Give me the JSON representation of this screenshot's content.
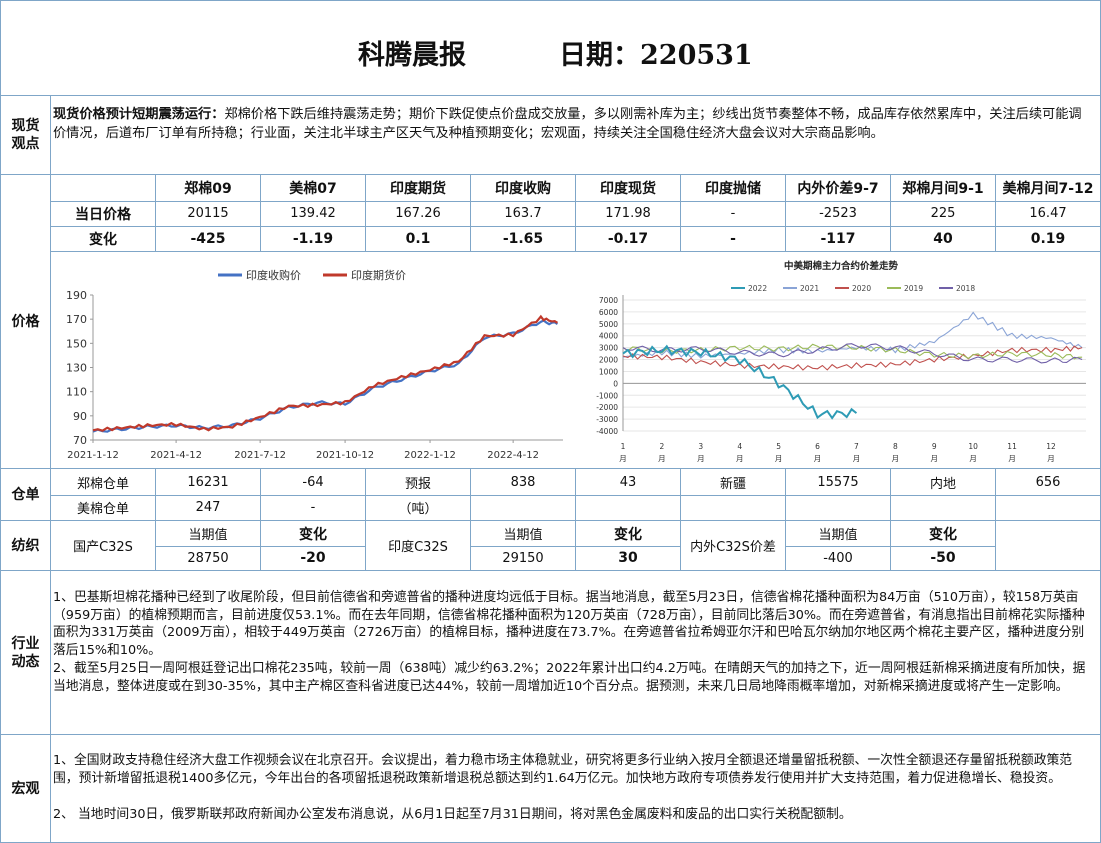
{
  "header": {
    "title": "科腾晨报",
    "date": "日期：220531"
  },
  "spot": {
    "label": "现货\n观点",
    "lead": "现货价格预计短期震荡运行：",
    "text": "郑棉价格下跌后维持震荡走势；期价下跌促使点价盘成交放量，多以刚需补库为主；纱线出货节奏整体不畅，成品库存依然累库中，关注后续可能调价情况，后道布厂订单有所持稳；行业面，关注北半球主产区天气及种植预期变化；宏观面，持续关注全国稳住经济大盘会议对大宗商品影响。"
  },
  "prices": {
    "label": "价格",
    "headers": [
      "郑棉09",
      "美棉07",
      "印度期货",
      "印度收购",
      "印度现货",
      "印度抛储",
      "内外价差9-7",
      "郑棉月间9-1",
      "美棉月间7-12"
    ],
    "row1_label": "当日价格",
    "row1": [
      "20115",
      "139.42",
      "167.26",
      "163.7",
      "171.98",
      "-",
      "-2523",
      "225",
      "16.47"
    ],
    "row2_label": "变化",
    "row2": [
      "-425",
      "-1.19",
      "0.1",
      "-1.65",
      "-0.17",
      "-",
      "-117",
      "40",
      "0.19"
    ]
  },
  "chart_data": [
    {
      "type": "line",
      "title": "",
      "legend": [
        "印度收购价",
        "印度期货价"
      ],
      "colors": {
        "印度收购价": "#4472c4",
        "印度期货价": "#c0392b"
      },
      "ylim": [
        70,
        190
      ],
      "yticks": [
        70,
        90,
        110,
        130,
        150,
        170,
        190
      ],
      "xticks": [
        "2021-1-12",
        "2021-4-12",
        "2021-7-12",
        "2021-10-12",
        "2022-1-12",
        "2022-4-12"
      ],
      "x": [
        "2021-1-12",
        "2021-2-12",
        "2021-3-12",
        "2021-4-12",
        "2021-5-12",
        "2021-6-12",
        "2021-7-12",
        "2021-8-12",
        "2021-9-12",
        "2021-10-12",
        "2021-11-12",
        "2021-12-12",
        "2022-1-12",
        "2022-2-12",
        "2022-3-12",
        "2022-4-12",
        "2022-5-12",
        "2022-5-30"
      ],
      "series": [
        {
          "name": "印度收购价",
          "values": [
            77,
            79,
            81,
            82,
            80,
            82,
            88,
            97,
            101,
            100,
            113,
            120,
            127,
            133,
            155,
            158,
            168,
            166
          ]
        },
        {
          "name": "印度期货价",
          "values": [
            78,
            80,
            82,
            83,
            79,
            81,
            89,
            98,
            99,
            101,
            115,
            122,
            128,
            135,
            156,
            157,
            171,
            167
          ]
        }
      ]
    },
    {
      "type": "line",
      "title": "中美期棉主力合约价差走势",
      "legend": [
        "2022",
        "2021",
        "2020",
        "2019",
        "2018"
      ],
      "colors": {
        "2022": "#2e9bb5",
        "2021": "#8aa4d6",
        "2020": "#c0504d",
        "2019": "#9bbb59",
        "2018": "#7060a8"
      },
      "ylim": [
        -4000,
        7000
      ],
      "yticks": [
        7000,
        6000,
        5000,
        4000,
        3000,
        2000,
        1000,
        0,
        -1000,
        -2000,
        -3000,
        -4000
      ],
      "xticks": [
        "1\n月",
        "2\n月",
        "3\n月",
        "4\n月",
        "5\n月",
        "6\n月",
        "7\n月",
        "8\n月",
        "9\n月",
        "10\n月",
        "11\n月",
        "12\n月"
      ],
      "x": [
        1,
        2,
        3,
        4,
        5,
        6,
        7,
        8,
        9,
        10,
        11,
        12,
        12.8
      ],
      "series": [
        {
          "name": "2022",
          "values": [
            2500,
            2800,
            2600,
            2000,
            0,
            -2600,
            -2500,
            null,
            null,
            null,
            null,
            null,
            null
          ]
        },
        {
          "name": "2021",
          "values": [
            2200,
            2600,
            2300,
            2500,
            2800,
            2700,
            3000,
            2800,
            3500,
            5800,
            4000,
            3800,
            3000
          ]
        },
        {
          "name": "2020",
          "values": [
            2300,
            2200,
            1800,
            1500,
            1400,
            1300,
            1500,
            1600,
            2000,
            2300,
            2800,
            2800,
            3000
          ]
        },
        {
          "name": "2019",
          "values": [
            3000,
            2700,
            2800,
            3000,
            2900,
            3100,
            3000,
            2800,
            2400,
            2300,
            2500,
            2400,
            2200
          ]
        },
        {
          "name": "2018",
          "values": [
            3000,
            2800,
            2900,
            2600,
            2400,
            2800,
            3200,
            3000,
            2500,
            2000,
            2000,
            1900,
            2000
          ]
        }
      ]
    }
  ],
  "warehouse": {
    "label": "仓单",
    "r1": [
      "郑棉仓单",
      "16231",
      "-64",
      "预报",
      "838",
      "43",
      "新疆",
      "15575",
      "内地",
      "656"
    ],
    "r2": [
      "美棉仓单",
      "247",
      "-",
      "（吨）"
    ]
  },
  "yarn": {
    "label": "纺织",
    "h1": "当期值",
    "c1": "变化",
    "domestic": "国产C32S",
    "domestic_val": "28750",
    "domestic_chg": "-20",
    "h2": "当期值",
    "c2": "变化",
    "india": "印度C32S",
    "india_val": "29150",
    "india_chg": "30",
    "spread": "内外C32S价差",
    "h3": "当期值",
    "c3": "变化",
    "spread_val": "-400",
    "spread_chg": "-50"
  },
  "industry": {
    "label": "行业\n动态",
    "p1": "1、巴基斯坦棉花播种已经到了收尾阶段，但目前信德省和旁遮普省的播种进度均远低于目标。据当地消息，截至5月23日，信德省棉花播种面积为84万亩（510万亩），较158万英亩（959万亩）的植棉预期而言，目前进度仅53.1%。而在去年同期，信德省棉花播种面积为120万英亩（728万亩），目前同比落后30%。而在旁遮普省，有消息指出目前棉花实际播种面积为331万英亩（2009万亩），相较于449万英亩（2726万亩）的植棉目标，播种进度在73.7%。在旁遮普省拉希姆亚尔汗和巴哈瓦尔纳加尔地区两个棉花主要产区，播种进度分别落后15%和10%。",
    "p2": "2、截至5月25日一周阿根廷登记出口棉花235吨，较前一周（638吨）减少约63.2%；2022年累计出口约4.2万吨。在晴朗天气的加持之下，近一周阿根廷新棉采摘进度有所加快，据当地消息，整体进度或在到30-35%，其中主产棉区查科省进度已达44%，较前一周增加近10个百分点。据预测，未来几日局地降雨概率增加，对新棉采摘进度或将产生一定影响。"
  },
  "macro": {
    "label": "宏观",
    "p1": "1、全国财政支持稳住经济大盘工作视频会议在北京召开。会议提出，着力稳市场主体稳就业，研究将更多行业纳入按月全额退还增量留抵税额、一次性全额退还存量留抵税额政策范围，预计新增留抵退税1400多亿元，今年出台的各项留抵退税政策新增退税总额达到约1.64万亿元。加快地方政府专项债券发行使用并扩大支持范围，着力促进稳增长、稳投资。",
    "p2": "2、 当地时间30日，俄罗斯联邦政府新闻办公室发布消息说，从6月1日起至7月31日期间，将对黑色金属废料和废品的出口实行关税配额制。"
  }
}
